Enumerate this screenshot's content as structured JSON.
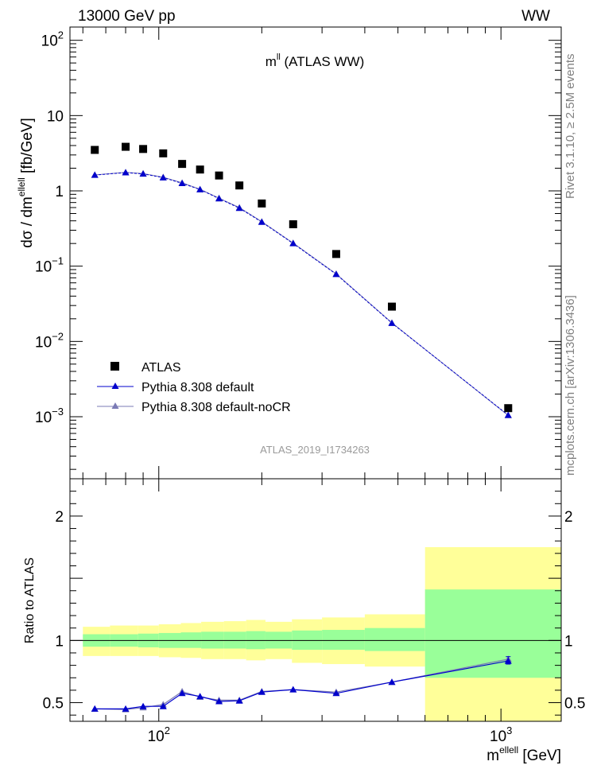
{
  "header": {
    "left": "13000 GeV pp",
    "right": "WW"
  },
  "side_text": {
    "top": "Rivet 3.1.10, ≥ 2.5M events",
    "bottom": "mcplots.cern.ch [arXiv:1306.3436]"
  },
  "chart_data": [
    {
      "type": "scatter",
      "title": "m",
      "title_sup": "ll",
      "title_suffix": " (ATLAS WW)",
      "watermark": "ATLAS_2019_I1734263",
      "ylabel": "dσ / dm",
      "ylabel_sup": "ellell",
      "ylabel_unit": " [fb/GeV]",
      "xscale": "log",
      "yscale": "log",
      "xlim": [
        55,
        1500
      ],
      "ylim": [
        0.00015,
        150
      ],
      "yticks": [
        {
          "v": 100,
          "base": "10",
          "exp": "2"
        },
        {
          "v": 10,
          "base": "10",
          "exp": ""
        },
        {
          "v": 1,
          "base": "1",
          "exp": ""
        },
        {
          "v": 0.1,
          "base": "10",
          "exp": "−1"
        },
        {
          "v": 0.01,
          "base": "10",
          "exp": "−2"
        },
        {
          "v": 0.001,
          "base": "10",
          "exp": "−3"
        }
      ],
      "x": [
        65,
        80,
        90,
        103,
        117,
        132,
        150,
        172,
        200,
        247,
        330,
        480,
        1050
      ],
      "series": [
        {
          "name": "ATLAS",
          "marker": "square",
          "color": "#000000",
          "values": [
            3.5,
            3.85,
            3.6,
            3.15,
            2.28,
            1.92,
            1.6,
            1.18,
            0.68,
            0.36,
            0.145,
            0.029,
            0.0013
          ]
        },
        {
          "name": "Pythia 8.308 default",
          "marker": "triangle",
          "color": "#0000cc",
          "values": [
            1.62,
            1.75,
            1.68,
            1.5,
            1.26,
            1.04,
            0.79,
            0.59,
            0.385,
            0.2,
            0.078,
            0.0175,
            0.00105
          ]
        },
        {
          "name": "Pythia 8.308 default-noCR",
          "marker": "triangle",
          "color": "#7b7bb5",
          "values": [
            1.63,
            1.76,
            1.7,
            1.52,
            1.28,
            1.05,
            0.8,
            0.6,
            0.39,
            0.203,
            0.079,
            0.0177,
            0.00104
          ]
        }
      ],
      "legend_position": "bottom-left"
    },
    {
      "type": "line",
      "ylabel": "Ratio to ATLAS",
      "xlabel": "m",
      "xlabel_sup": "ellell",
      "xlabel_unit": " [GeV]",
      "xscale": "log",
      "xlim": [
        55,
        1500
      ],
      "ylim": [
        0.35,
        2.3
      ],
      "yticks": [
        {
          "v": 0.5,
          "label": "0.5"
        },
        {
          "v": 1,
          "label": "1"
        },
        {
          "v": 2,
          "label": "2"
        }
      ],
      "xticks": [
        {
          "v": 100,
          "base": "10",
          "exp": "2"
        },
        {
          "v": 1000,
          "base": "10",
          "exp": "3"
        }
      ],
      "bands": [
        {
          "lo": 60,
          "hi": 72,
          "y_stat": [
            0.95,
            1.05
          ],
          "y_tot": [
            0.875,
            1.11
          ]
        },
        {
          "lo": 72,
          "hi": 87,
          "y_stat": [
            0.95,
            1.05
          ],
          "y_tot": [
            0.875,
            1.12
          ]
        },
        {
          "lo": 87,
          "hi": 100,
          "y_stat": [
            0.945,
            1.055
          ],
          "y_tot": [
            0.875,
            1.12
          ]
        },
        {
          "lo": 100,
          "hi": 116,
          "y_stat": [
            0.94,
            1.06
          ],
          "y_tot": [
            0.865,
            1.13
          ]
        },
        {
          "lo": 116,
          "hi": 133,
          "y_stat": [
            0.94,
            1.065
          ],
          "y_tot": [
            0.86,
            1.14
          ]
        },
        {
          "lo": 133,
          "hi": 155,
          "y_stat": [
            0.935,
            1.07
          ],
          "y_tot": [
            0.85,
            1.15
          ]
        },
        {
          "lo": 155,
          "hi": 180,
          "y_stat": [
            0.935,
            1.07
          ],
          "y_tot": [
            0.85,
            1.155
          ]
        },
        {
          "lo": 180,
          "hi": 205,
          "y_stat": [
            0.93,
            1.075
          ],
          "y_tot": [
            0.84,
            1.165
          ]
        },
        {
          "lo": 205,
          "hi": 245,
          "y_stat": [
            0.935,
            1.07
          ],
          "y_tot": [
            0.85,
            1.15
          ]
        },
        {
          "lo": 245,
          "hi": 300,
          "y_stat": [
            0.925,
            1.08
          ],
          "y_tot": [
            0.82,
            1.17
          ]
        },
        {
          "lo": 300,
          "hi": 400,
          "y_stat": [
            0.925,
            1.085
          ],
          "y_tot": [
            0.81,
            1.185
          ]
        },
        {
          "lo": 400,
          "hi": 600,
          "y_stat": [
            0.915,
            1.1
          ],
          "y_tot": [
            0.79,
            1.21
          ]
        },
        {
          "lo": 600,
          "hi": 1500,
          "y_stat": [
            0.7,
            1.41
          ],
          "y_tot": [
            0.35,
            1.75
          ]
        }
      ],
      "reference_line": 1,
      "x": [
        65,
        80,
        90,
        103,
        117,
        132,
        150,
        172,
        200,
        247,
        330,
        480,
        1050
      ],
      "series": [
        {
          "name": "Pythia 8.308 default",
          "color": "#0000cc",
          "values": [
            0.45,
            0.45,
            0.47,
            0.47,
            0.575,
            0.55,
            0.51,
            0.515,
            0.585,
            0.605,
            0.575,
            0.665,
            0.835
          ]
        },
        {
          "name": "Pythia 8.308 default-noCR",
          "color": "#7b7bb5",
          "values": [
            0.45,
            0.445,
            0.46,
            0.485,
            0.59,
            0.545,
            0.52,
            0.52,
            0.59,
            0.605,
            0.585,
            0.665,
            0.85
          ]
        }
      ]
    }
  ]
}
